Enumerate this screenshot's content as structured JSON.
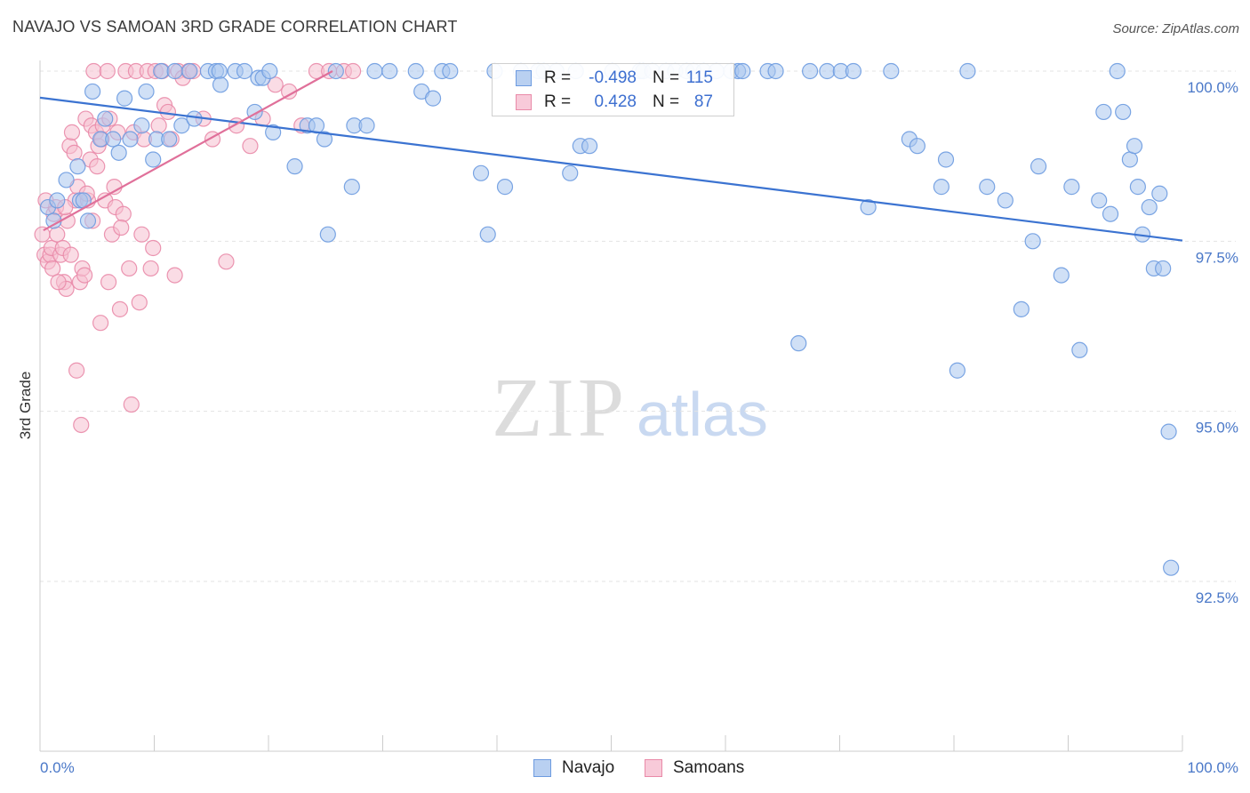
{
  "header": {
    "title": "NAVAJO VS SAMOAN 3RD GRADE CORRELATION CHART",
    "source": "Source: ZipAtlas.com"
  },
  "watermark": {
    "zip": "ZIP",
    "atlas": "atlas"
  },
  "legend": {
    "rows": [
      {
        "r_label": "R =",
        "r_value": "-0.498",
        "n_label": "N =",
        "n_value": "115"
      },
      {
        "r_label": "R =",
        "r_value": "0.428",
        "n_label": "N =",
        "n_value": "87"
      }
    ],
    "bottom": [
      {
        "label": "Navajo"
      },
      {
        "label": "Samoans"
      }
    ]
  },
  "colors": {
    "navajo_fill": "#a9c6ef",
    "navajo_stroke": "#6d9be0",
    "navajo_line": "#3b73d1",
    "samoan_fill": "#f6bfd0",
    "samoan_stroke": "#e98aa8",
    "samoan_line": "#e0709a",
    "tick_text": "#4a78c8",
    "grid": "#e3e3e3"
  },
  "chart_data": {
    "type": "scatter",
    "title": "NAVAJO VS SAMOAN 3RD GRADE CORRELATION CHART",
    "xlabel": "",
    "ylabel": "3rd Grade",
    "xlim": [
      0,
      100
    ],
    "ylim": [
      90.2,
      100.35
    ],
    "x_tick_labels": [
      "0.0%",
      "100.0%"
    ],
    "y_ticks": [
      100,
      97.5,
      95,
      92.5
    ],
    "y_tick_labels": [
      "100.0%",
      "97.5%",
      "95.0%",
      "92.5%"
    ],
    "grid": true,
    "legend_position": "top-center",
    "series": [
      {
        "name": "Navajo",
        "r": -0.498,
        "n": 115,
        "trend": {
          "x": [
            0,
            100
          ],
          "y": [
            99.61,
            97.51
          ]
        },
        "points": [
          [
            0.7,
            98.0
          ],
          [
            1.2,
            97.8
          ],
          [
            1.5,
            98.1
          ],
          [
            2.3,
            98.4
          ],
          [
            3.3,
            98.6
          ],
          [
            3.5,
            98.1
          ],
          [
            3.8,
            98.1
          ],
          [
            4.2,
            97.8
          ],
          [
            4.6,
            99.7
          ],
          [
            5.3,
            99.0
          ],
          [
            5.7,
            99.3
          ],
          [
            6.4,
            99.0
          ],
          [
            6.9,
            98.8
          ],
          [
            7.4,
            99.6
          ],
          [
            7.9,
            99.0
          ],
          [
            8.9,
            99.2
          ],
          [
            9.3,
            99.7
          ],
          [
            9.9,
            98.7
          ],
          [
            10.2,
            99.0
          ],
          [
            10.6,
            100.0
          ],
          [
            11.3,
            99.0
          ],
          [
            11.8,
            100.0
          ],
          [
            12.4,
            99.2
          ],
          [
            13.1,
            100.0
          ],
          [
            13.5,
            99.3
          ],
          [
            14.7,
            100.0
          ],
          [
            15.4,
            100.0
          ],
          [
            15.7,
            100.0
          ],
          [
            15.8,
            99.8
          ],
          [
            17.1,
            100.0
          ],
          [
            17.9,
            100.0
          ],
          [
            18.8,
            99.4
          ],
          [
            19.1,
            99.9
          ],
          [
            19.5,
            99.9
          ],
          [
            20.1,
            100.0
          ],
          [
            20.4,
            99.1
          ],
          [
            22.3,
            98.6
          ],
          [
            23.4,
            99.2
          ],
          [
            24.2,
            99.2
          ],
          [
            24.9,
            99.0
          ],
          [
            25.2,
            97.6
          ],
          [
            25.9,
            100.0
          ],
          [
            27.3,
            98.3
          ],
          [
            27.5,
            99.2
          ],
          [
            28.6,
            99.2
          ],
          [
            29.3,
            100.0
          ],
          [
            30.6,
            100.0
          ],
          [
            32.9,
            100.0
          ],
          [
            33.4,
            99.7
          ],
          [
            34.4,
            99.6
          ],
          [
            35.2,
            100.0
          ],
          [
            35.9,
            100.0
          ],
          [
            38.6,
            98.5
          ],
          [
            39.2,
            97.6
          ],
          [
            39.8,
            100.0
          ],
          [
            40.7,
            98.3
          ],
          [
            42.1,
            100.0
          ],
          [
            43.6,
            100.0
          ],
          [
            44.1,
            100.0
          ],
          [
            45.2,
            100.0
          ],
          [
            46.4,
            98.5
          ],
          [
            46.9,
            100.0
          ],
          [
            47.3,
            98.9
          ],
          [
            48.1,
            98.9
          ],
          [
            50.1,
            100.0
          ],
          [
            52.5,
            100.0
          ],
          [
            52.8,
            100.0
          ],
          [
            53.6,
            100.0
          ],
          [
            54.8,
            100.0
          ],
          [
            55.6,
            100.0
          ],
          [
            56.6,
            100.0
          ],
          [
            57.2,
            100.0
          ],
          [
            58.1,
            100.0
          ],
          [
            59.2,
            100.0
          ],
          [
            60.5,
            100.0
          ],
          [
            61.1,
            100.0
          ],
          [
            61.5,
            100.0
          ],
          [
            63.7,
            100.0
          ],
          [
            64.4,
            100.0
          ],
          [
            66.4,
            96.0
          ],
          [
            67.4,
            100.0
          ],
          [
            68.9,
            100.0
          ],
          [
            70.1,
            100.0
          ],
          [
            71.2,
            100.0
          ],
          [
            72.5,
            98.0
          ],
          [
            74.5,
            100.0
          ],
          [
            76.1,
            99.0
          ],
          [
            76.8,
            98.9
          ],
          [
            78.9,
            98.3
          ],
          [
            79.3,
            98.7
          ],
          [
            80.3,
            95.6
          ],
          [
            81.2,
            100.0
          ],
          [
            82.9,
            98.3
          ],
          [
            84.5,
            98.1
          ],
          [
            85.9,
            96.5
          ],
          [
            86.9,
            97.5
          ],
          [
            87.4,
            98.6
          ],
          [
            89.4,
            97.0
          ],
          [
            90.3,
            98.3
          ],
          [
            91.0,
            95.9
          ],
          [
            92.7,
            98.1
          ],
          [
            93.1,
            99.4
          ],
          [
            93.7,
            97.9
          ],
          [
            94.3,
            100.0
          ],
          [
            94.8,
            99.4
          ],
          [
            95.4,
            98.7
          ],
          [
            95.8,
            98.9
          ],
          [
            96.1,
            98.3
          ],
          [
            96.5,
            97.6
          ],
          [
            97.1,
            98.0
          ],
          [
            97.5,
            97.1
          ],
          [
            98.0,
            98.2
          ],
          [
            98.3,
            97.1
          ],
          [
            98.8,
            94.7
          ],
          [
            99.0,
            92.7
          ]
        ]
      },
      {
        "name": "Samoans",
        "r": 0.428,
        "n": 87,
        "trend": {
          "x": [
            0.3,
            25.6
          ],
          "y": [
            97.66,
            100.0
          ]
        },
        "points": [
          [
            0.2,
            97.6
          ],
          [
            0.4,
            97.3
          ],
          [
            0.7,
            97.2
          ],
          [
            0.9,
            97.3
          ],
          [
            1.0,
            97.4
          ],
          [
            1.2,
            97.9
          ],
          [
            1.4,
            98.0
          ],
          [
            1.5,
            97.6
          ],
          [
            1.8,
            97.3
          ],
          [
            2.0,
            97.4
          ],
          [
            2.1,
            96.9
          ],
          [
            2.3,
            96.8
          ],
          [
            2.4,
            97.8
          ],
          [
            2.6,
            98.9
          ],
          [
            2.8,
            99.1
          ],
          [
            3.0,
            98.8
          ],
          [
            3.1,
            98.1
          ],
          [
            3.3,
            98.3
          ],
          [
            3.5,
            96.9
          ],
          [
            3.7,
            97.1
          ],
          [
            3.9,
            97.0
          ],
          [
            4.0,
            99.3
          ],
          [
            4.2,
            98.1
          ],
          [
            4.4,
            98.7
          ],
          [
            4.5,
            99.2
          ],
          [
            4.7,
            100.0
          ],
          [
            4.9,
            99.1
          ],
          [
            5.1,
            98.9
          ],
          [
            5.3,
            96.3
          ],
          [
            5.5,
            99.2
          ],
          [
            5.7,
            98.1
          ],
          [
            5.9,
            100.0
          ],
          [
            6.1,
            99.3
          ],
          [
            6.3,
            97.6
          ],
          [
            6.6,
            98.0
          ],
          [
            6.8,
            99.1
          ],
          [
            7.0,
            96.5
          ],
          [
            7.3,
            97.9
          ],
          [
            7.5,
            100.0
          ],
          [
            7.8,
            97.1
          ],
          [
            8.0,
            95.1
          ],
          [
            8.2,
            99.1
          ],
          [
            8.4,
            100.0
          ],
          [
            8.7,
            96.6
          ],
          [
            8.9,
            97.6
          ],
          [
            9.1,
            99.0
          ],
          [
            9.4,
            100.0
          ],
          [
            9.7,
            97.1
          ],
          [
            9.9,
            97.4
          ],
          [
            10.1,
            100.0
          ],
          [
            10.4,
            99.2
          ],
          [
            10.7,
            100.0
          ],
          [
            10.9,
            99.5
          ],
          [
            11.2,
            99.4
          ],
          [
            11.5,
            99.0
          ],
          [
            11.8,
            97.0
          ],
          [
            12.1,
            100.0
          ],
          [
            12.5,
            99.9
          ],
          [
            13.0,
            100.0
          ],
          [
            13.4,
            100.0
          ],
          [
            14.3,
            99.3
          ],
          [
            15.1,
            99.0
          ],
          [
            16.3,
            97.2
          ],
          [
            17.2,
            99.2
          ],
          [
            18.4,
            98.9
          ],
          [
            19.5,
            99.3
          ],
          [
            20.6,
            99.8
          ],
          [
            21.8,
            99.7
          ],
          [
            22.9,
            99.2
          ],
          [
            24.2,
            100.0
          ],
          [
            25.3,
            100.0
          ],
          [
            26.6,
            100.0
          ],
          [
            27.4,
            100.0
          ],
          [
            0.5,
            98.1
          ],
          [
            1.1,
            97.1
          ],
          [
            1.6,
            96.9
          ],
          [
            2.2,
            98.0
          ],
          [
            2.7,
            97.3
          ],
          [
            3.2,
            95.6
          ],
          [
            3.6,
            94.8
          ],
          [
            4.1,
            98.2
          ],
          [
            4.6,
            97.8
          ],
          [
            5.0,
            98.6
          ],
          [
            5.4,
            99.0
          ],
          [
            6.0,
            96.9
          ],
          [
            6.5,
            98.3
          ],
          [
            7.1,
            97.7
          ]
        ]
      }
    ]
  }
}
